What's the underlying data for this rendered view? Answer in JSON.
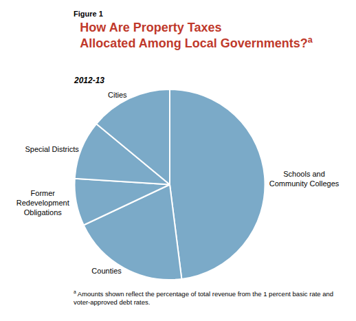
{
  "chart_data": {
    "type": "pie",
    "figure_label": "Figure 1",
    "title": "How Are Property Taxes\nAllocated Among Local Governments?",
    "title_note": "a",
    "title_color": "#C0392B",
    "subtitle": "2012-13",
    "categories": [
      "Schools and\nCommunity Colleges",
      "Counties",
      "Former\nRedevelopment\nObligations",
      "Special Districts",
      "Cities"
    ],
    "values": [
      48,
      20,
      8,
      10,
      14
    ],
    "color": "#7BAAC8",
    "footnote": {
      "mark": "a",
      "text": "Amounts shown reflect the percentage of total revenue from the 1 percent basic rate and\nvoter-approved debt rates."
    }
  }
}
